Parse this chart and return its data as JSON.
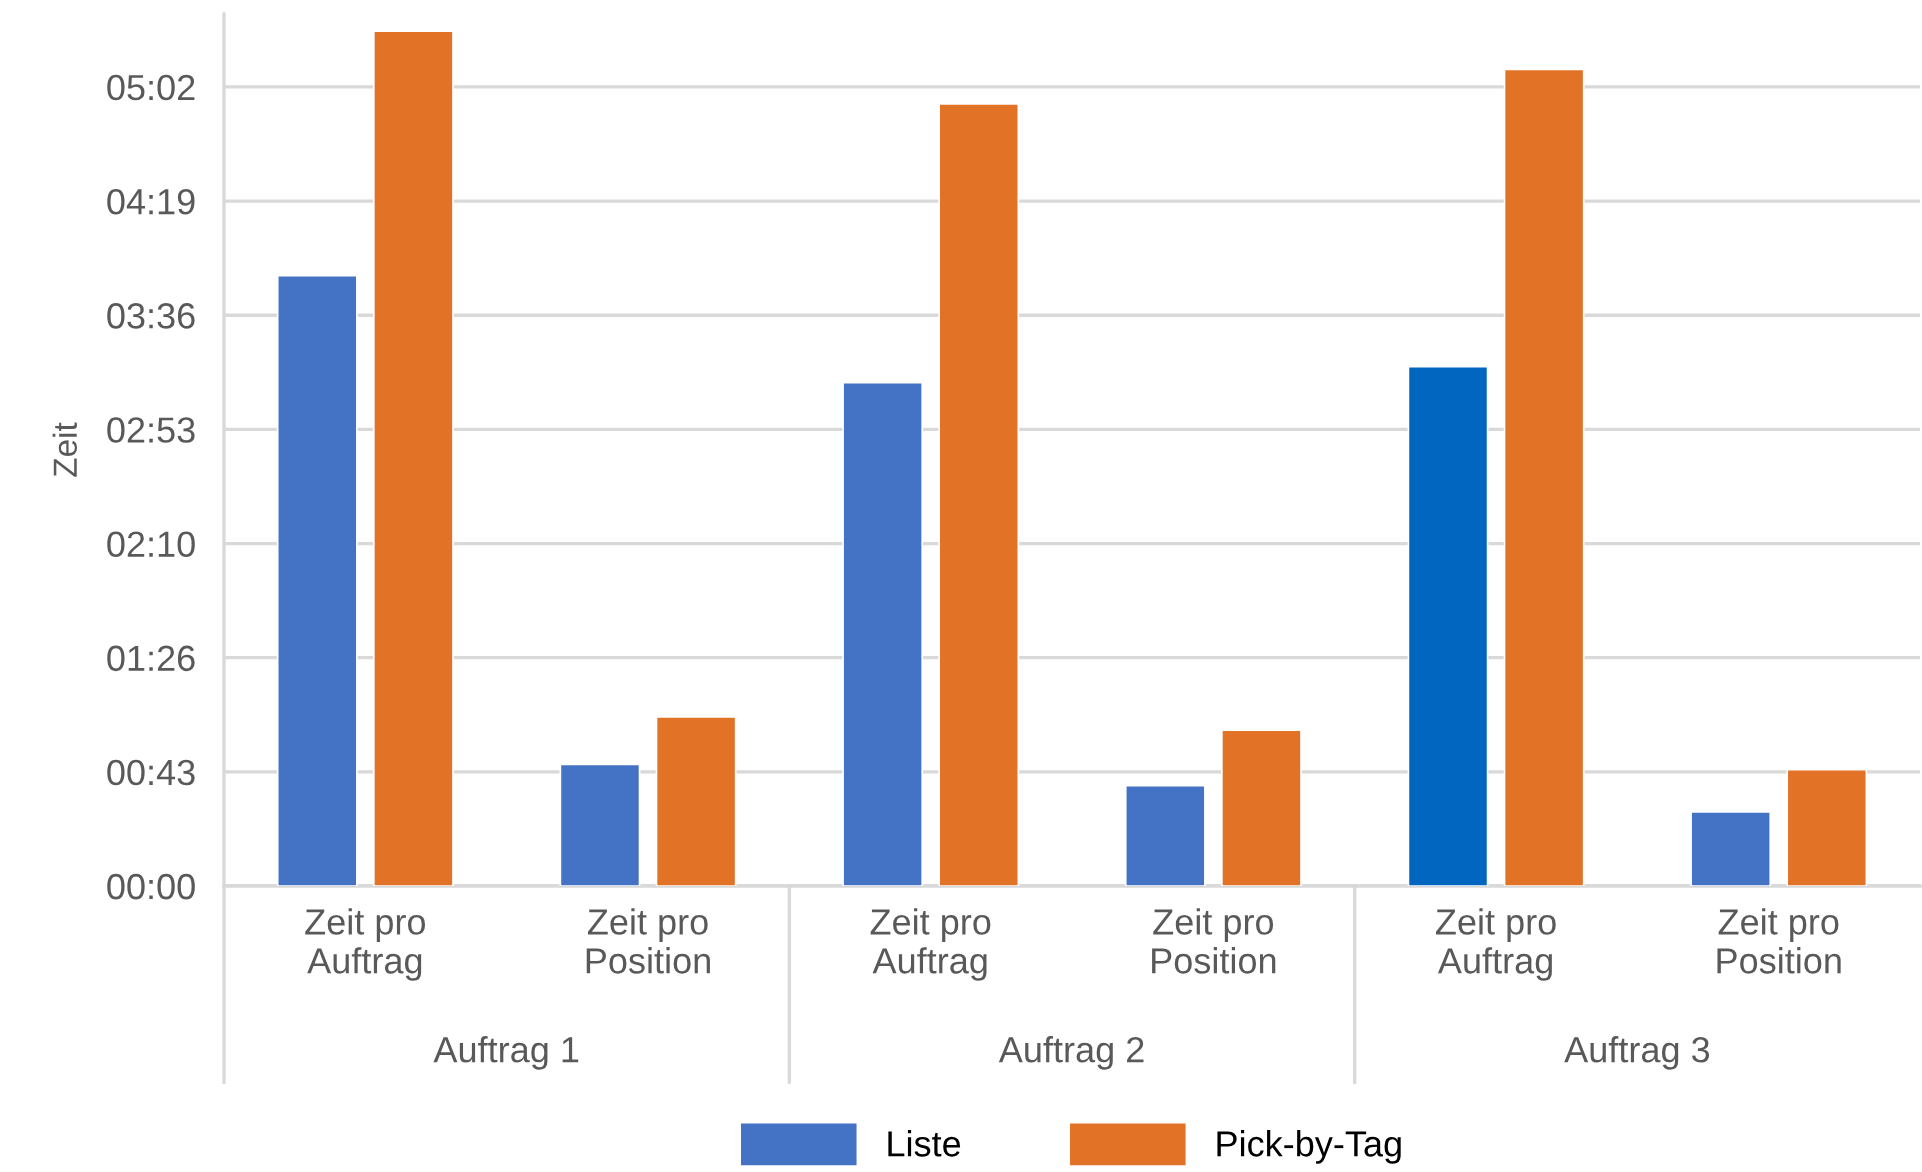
{
  "chart_data": {
    "type": "bar",
    "ylabel": "Zeit",
    "categories": [
      "Zeit pro\nAuftrag",
      "Zeit pro\nPosition",
      "Zeit pro\nAuftrag",
      "Zeit pro\nPosition",
      "Zeit pro\nAuftrag",
      "Zeit pro\nPosition"
    ],
    "series": [
      {
        "name": "Liste",
        "color": "#4472c4",
        "colors": [
          "#4472c4",
          "#4472c4",
          "#4472c4",
          "#4472c4",
          "#0066bf",
          "#4472c4"
        ],
        "values": [
          231,
          46,
          190.5,
          38,
          196.5,
          28
        ]
      },
      {
        "name": "Pick-by-Tag",
        "color": "#e27225",
        "values": [
          323.5,
          64,
          296,
          59,
          309,
          44
        ]
      }
    ],
    "ylim": [
      0,
      330
    ],
    "yticks": [
      {
        "value": 0,
        "label": "00:00"
      },
      {
        "value": 43.2,
        "label": "00:43"
      },
      {
        "value": 86.4,
        "label": "01:26"
      },
      {
        "value": 129.6,
        "label": "02:10"
      },
      {
        "value": 172.8,
        "label": "02:53"
      },
      {
        "value": 216,
        "label": "03:36"
      },
      {
        "value": 259.2,
        "label": "04:19"
      },
      {
        "value": 302.4,
        "label": "05:02"
      }
    ],
    "annotations": [
      "Auftrag 1",
      "Auftrag 2",
      "Auftrag 3"
    ],
    "grid": "y",
    "legend": "bottom"
  }
}
